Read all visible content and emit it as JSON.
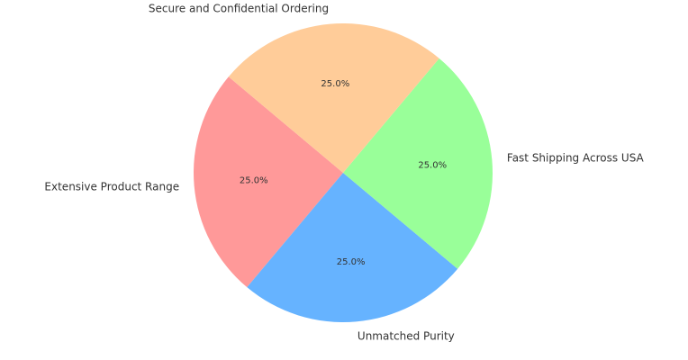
{
  "chart_data": {
    "type": "pie",
    "categories": [
      "Extensive Product Range",
      "Unmatched Purity",
      "Fast Shipping Across USA",
      "Secure and Confidential Ordering"
    ],
    "values": [
      25,
      25,
      25,
      25
    ],
    "value_labels": [
      "25.0%",
      "25.0%",
      "25.0%",
      "25.0%"
    ],
    "colors": [
      "#ff9999",
      "#66b3ff",
      "#99ff99",
      "#ffcc99"
    ],
    "start_angle": 140
  }
}
